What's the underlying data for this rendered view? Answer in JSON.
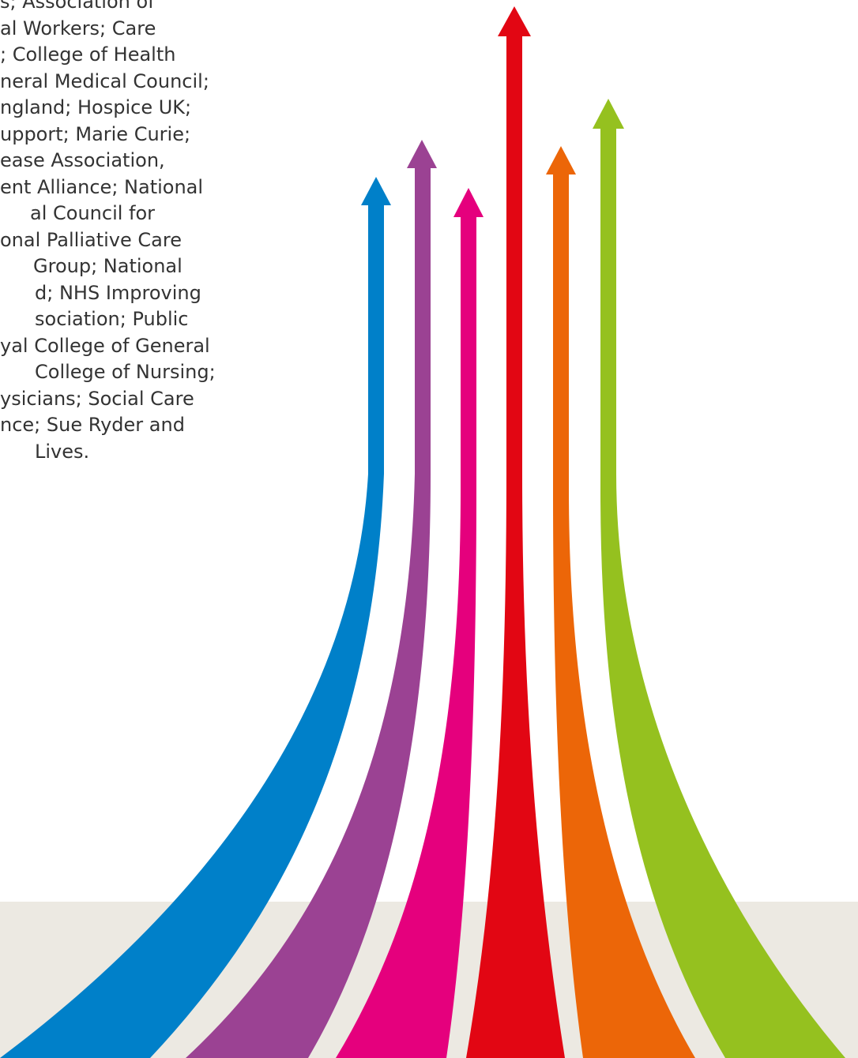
{
  "text_block": {
    "lines": [
      "s; Association of",
      "al Workers; Care",
      "; College of Health",
      "neral Medical Council;",
      "ngland; Hospice UK;",
      "upport; Marie Curie;",
      "ease Association,",
      "ent Alliance; National",
      "al Council for",
      "onal Palliative Care",
      "Group; National",
      "d; NHS Improving",
      "sociation; Public",
      "yal College of General",
      "College of Nursing;",
      "ysicians; Social Care",
      "nce; Sue Ryder and",
      "Lives."
    ],
    "color": "#333333"
  },
  "graphic": {
    "band_color": "#ece9e2",
    "arrows": [
      {
        "name": "blue-arrow",
        "color": "#0080c9"
      },
      {
        "name": "purple-arrow",
        "color": "#9b4293"
      },
      {
        "name": "magenta-arrow",
        "color": "#e5007d"
      },
      {
        "name": "red-arrow",
        "color": "#e20613"
      },
      {
        "name": "orange-arrow",
        "color": "#ec6608"
      },
      {
        "name": "green-arrow",
        "color": "#95c11f"
      }
    ]
  }
}
